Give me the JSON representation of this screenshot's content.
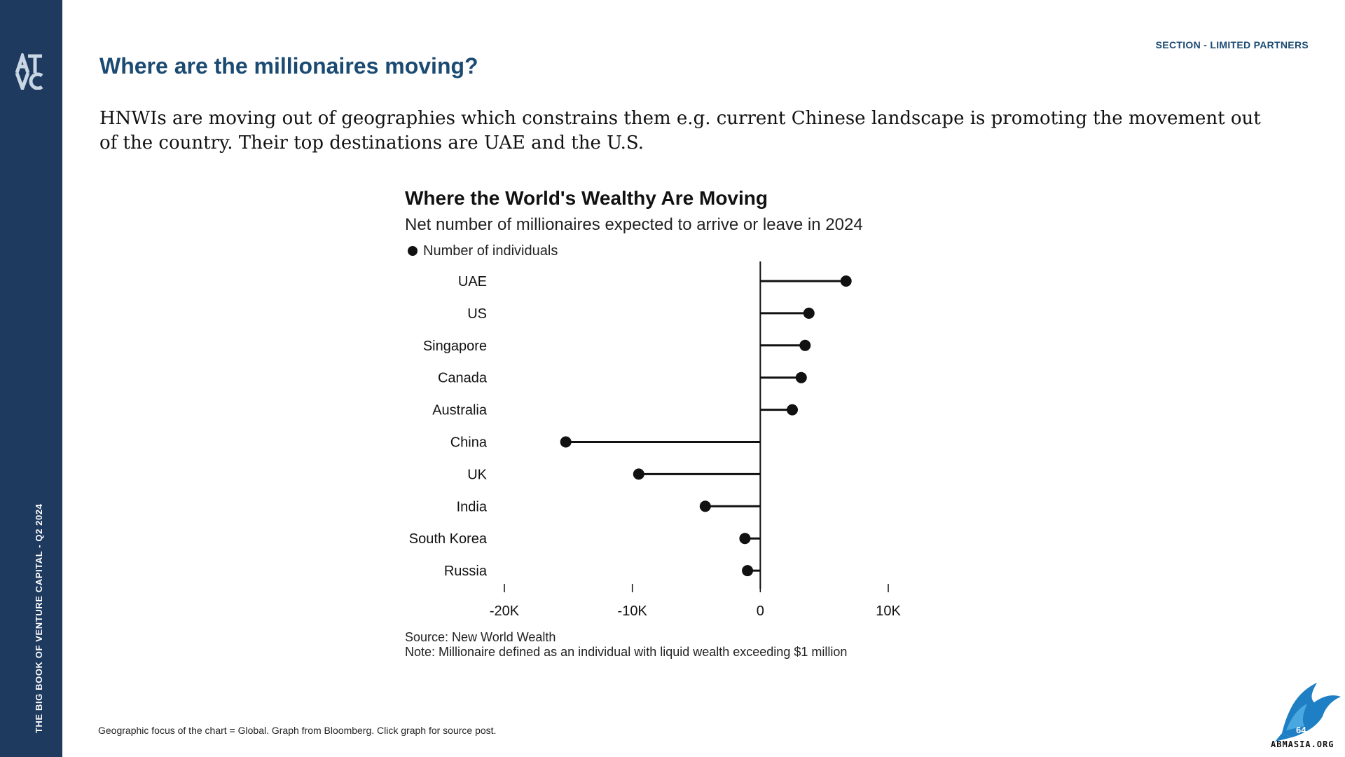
{
  "sidebar": {
    "text": "THE BIG BOOK OF VENTURE CAPITAL - Q2 2024",
    "logo_text": "ATVC",
    "background": "#1e3a5f"
  },
  "header": {
    "section": "SECTION - LIMITED PARTNERS",
    "title": "Where are the millionaires moving?",
    "intro": "HNWIs are moving out of geographies which constrains them e.g. current Chinese landscape is promoting the movement out of the country. Their top destinations are UAE and the U.S."
  },
  "chart_data": {
    "type": "lollipop",
    "orientation": "horizontal",
    "title": "Where the World's Wealthy Are Moving",
    "subtitle": "Net number of millionaires expected to arrive or leave in 2024",
    "legend": {
      "label": "Number of individuals",
      "placement": "top-left"
    },
    "categories": [
      "UAE",
      "US",
      "Singapore",
      "Canada",
      "Australia",
      "China",
      "UK",
      "India",
      "South Korea",
      "Russia"
    ],
    "series": [
      {
        "name": "Number of individuals",
        "values": [
          6700,
          3800,
          3500,
          3200,
          2500,
          -15200,
          -9500,
          -4300,
          -1200,
          -1000
        ]
      }
    ],
    "x_ticks": [
      {
        "value": -20000,
        "label": "-20K"
      },
      {
        "value": -10000,
        "label": "-10K"
      },
      {
        "value": 0,
        "label": "0"
      },
      {
        "value": 10000,
        "label": "10K"
      }
    ],
    "xlim": [
      -20000,
      10000
    ],
    "grid": false,
    "source": "Source: New World Wealth",
    "note": "Note: Millionaire defined as an individual with liquid wealth exceeding $1 million",
    "colors": {
      "marker": "#111111",
      "axis": "#111111"
    }
  },
  "footer": {
    "note": "Geographic focus of the chart = Global. Graph from Bloomberg. Click graph for source post.",
    "page_number": "64",
    "logo_text": "ABMASIA.ORG"
  },
  "colors": {
    "accent": "#1b4a72"
  }
}
